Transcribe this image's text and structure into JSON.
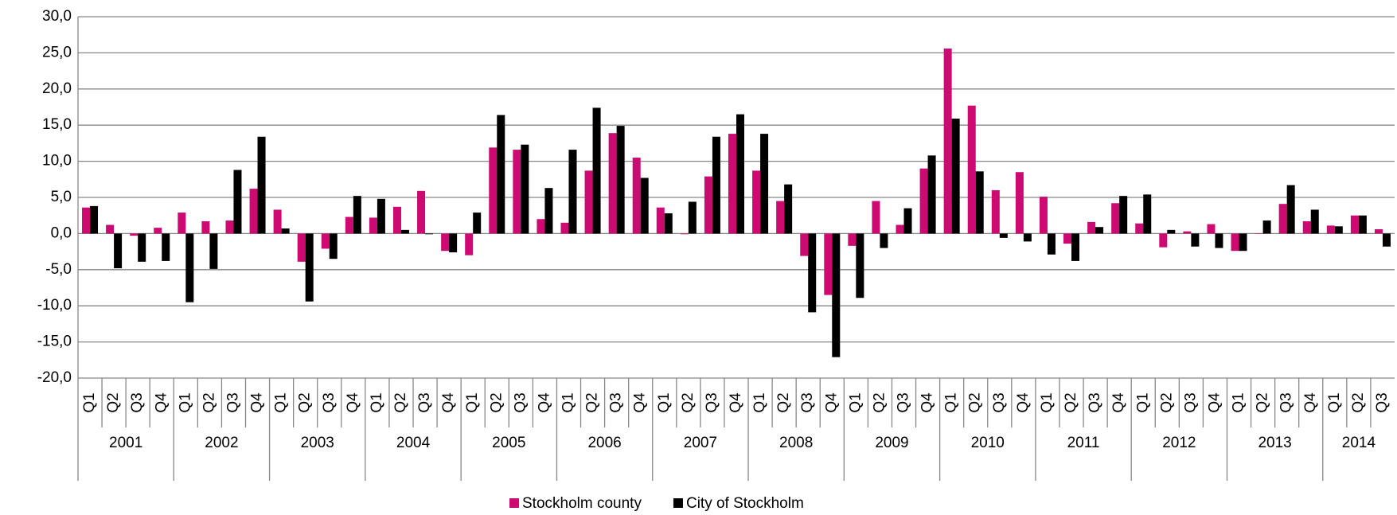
{
  "chart_data": {
    "type": "bar",
    "categories": [
      "Q1",
      "Q2",
      "Q3",
      "Q4",
      "Q1",
      "Q2",
      "Q3",
      "Q4",
      "Q1",
      "Q2",
      "Q3",
      "Q4",
      "Q1",
      "Q2",
      "Q3",
      "Q4",
      "Q1",
      "Q2",
      "Q3",
      "Q4",
      "Q1",
      "Q2",
      "Q3",
      "Q4",
      "Q1",
      "Q2",
      "Q3",
      "Q4",
      "Q1",
      "Q2",
      "Q3",
      "Q4",
      "Q1",
      "Q2",
      "Q3",
      "Q4",
      "Q1",
      "Q2",
      "Q3",
      "Q4",
      "Q1",
      "Q2",
      "Q3",
      "Q4",
      "Q1",
      "Q2",
      "Q3",
      "Q4",
      "Q1",
      "Q2",
      "Q3",
      "Q4",
      "Q1",
      "Q2",
      "Q3"
    ],
    "years": [
      "2001",
      "2002",
      "2003",
      "2004",
      "2005",
      "2006",
      "2007",
      "2008",
      "2009",
      "2010",
      "2011",
      "2012",
      "2013",
      "2014"
    ],
    "series": [
      {
        "name": "Stockholm county",
        "color": "#cc0a72",
        "values": [
          3.6,
          1.2,
          -0.3,
          0.8,
          2.9,
          1.7,
          1.8,
          6.2,
          3.3,
          -3.9,
          -2.1,
          2.3,
          2.2,
          3.7,
          5.9,
          -2.4,
          -3.0,
          11.9,
          11.6,
          2.0,
          1.5,
          8.7,
          13.9,
          10.5,
          3.6,
          -0.1,
          7.9,
          13.8,
          8.7,
          4.5,
          -3.1,
          -8.5,
          -1.7,
          4.5,
          1.2,
          9.0,
          25.6,
          17.7,
          6.0,
          8.5,
          5.1,
          -1.4,
          1.6,
          4.2,
          1.4,
          -1.9,
          0.3,
          1.3,
          -2.4,
          0.0,
          4.1,
          1.7,
          1.1,
          2.5,
          0.6
        ]
      },
      {
        "name": "City of Stockholm",
        "color": "#000000",
        "values": [
          3.8,
          -4.8,
          -3.9,
          -3.8,
          -9.5,
          -4.9,
          8.8,
          13.4,
          0.7,
          -9.4,
          -3.5,
          5.2,
          4.8,
          0.5,
          -0.1,
          -2.6,
          2.9,
          16.4,
          12.3,
          6.3,
          11.6,
          17.4,
          14.9,
          7.7,
          2.8,
          4.4,
          13.4,
          16.5,
          13.8,
          6.8,
          -10.9,
          -17.1,
          -8.9,
          -2.0,
          3.5,
          10.8,
          15.9,
          8.6,
          -0.6,
          -1.1,
          -2.9,
          -3.8,
          0.9,
          5.2,
          5.4,
          0.5,
          -1.8,
          -2.0,
          -2.4,
          1.8,
          6.7,
          3.3,
          1.0,
          2.5,
          -1.8
        ]
      }
    ],
    "ylim": [
      -20,
      30
    ],
    "yticks": [
      {
        "value": -20,
        "label": "-20,0"
      },
      {
        "value": -15,
        "label": "-15,0"
      },
      {
        "value": -10,
        "label": "-10,0"
      },
      {
        "value": -5,
        "label": "-5,0"
      },
      {
        "value": 0,
        "label": "0,0"
      },
      {
        "value": 5,
        "label": "5,0"
      },
      {
        "value": 10,
        "label": "10,0"
      },
      {
        "value": 15,
        "label": "15,0"
      },
      {
        "value": 20,
        "label": "20,0"
      },
      {
        "value": 25,
        "label": "25,0"
      },
      {
        "value": 30,
        "label": "30,0"
      }
    ],
    "grid": true,
    "legend": "bottom"
  }
}
